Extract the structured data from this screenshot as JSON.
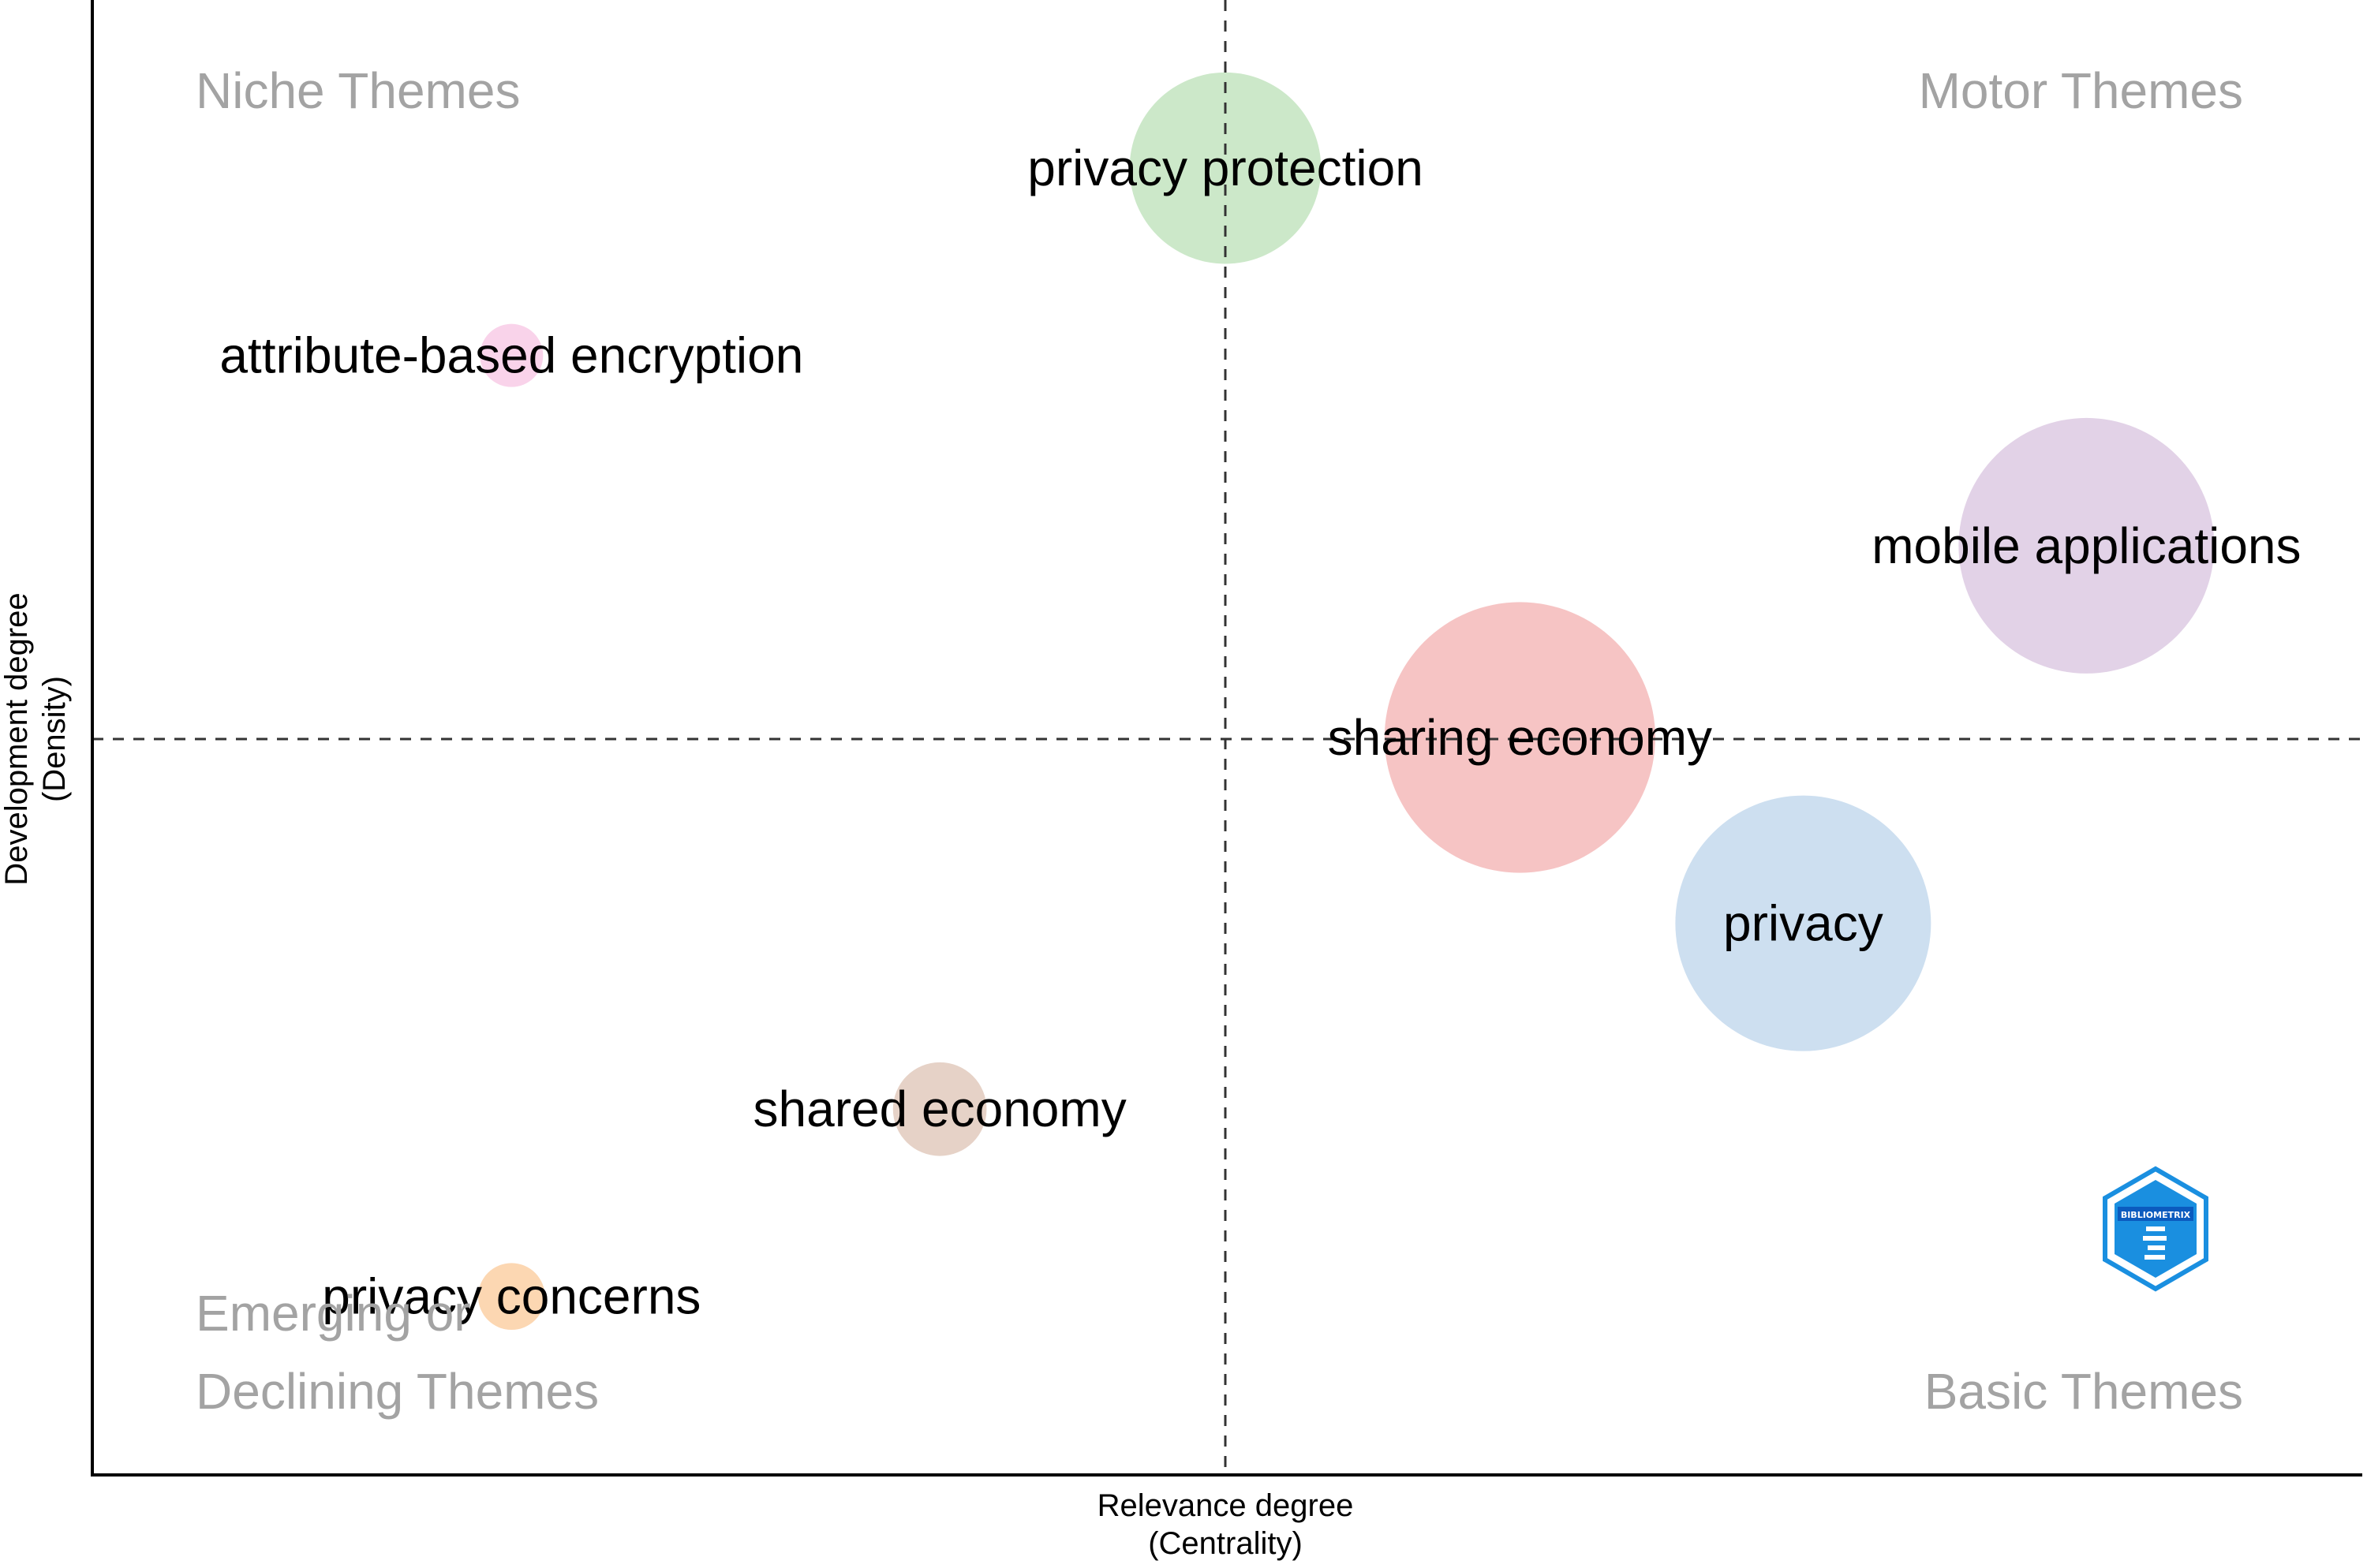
{
  "quadrant_labels": {
    "top_left": "Niche Themes",
    "top_right": "Motor Themes",
    "bottom_left_line1": "Emerging or",
    "bottom_left_line2": "Declining Themes",
    "bottom_right": "Basic Themes"
  },
  "axes": {
    "x_title_line1": "Relevance degree",
    "x_title_line2": "(Centrality)",
    "y_title_line1": "Development degree",
    "y_title_line2": "(Density)"
  },
  "logo": {
    "text": "BIBLIOMETRIX",
    "colors": [
      "#1a8fe0",
      "#0b5bbf"
    ]
  },
  "chart_data": {
    "type": "scatter",
    "subtype": "bubble",
    "xlabel": "Relevance degree (Centrality)",
    "ylabel": "Development degree (Density)",
    "xlim": [
      0,
      100
    ],
    "ylim": [
      0,
      100
    ],
    "x_divider": 50,
    "y_divider": 50,
    "grid": false,
    "ticks": false,
    "points": [
      {
        "label": "privacy protection",
        "x": 50.0,
        "y": 88.6,
        "size": 2.3,
        "color": "#cce8c9"
      },
      {
        "label": "attribute-based encryption",
        "x": 18.5,
        "y": 75.9,
        "size": 0.25,
        "color": "#f9d3ea"
      },
      {
        "label": "mobile applications",
        "x": 88.0,
        "y": 63.0,
        "size": 4.1,
        "color": "#e2d2e7"
      },
      {
        "label": "sharing economy",
        "x": 63.0,
        "y": 50.0,
        "size": 4.6,
        "color": "#f6c4c4"
      },
      {
        "label": "privacy",
        "x": 75.5,
        "y": 37.4,
        "size": 4.1,
        "color": "#cddff0"
      },
      {
        "label": "shared economy",
        "x": 37.4,
        "y": 24.8,
        "size": 0.55,
        "color": "#e6d2c7"
      },
      {
        "label": "privacy concerns",
        "x": 18.5,
        "y": 12.1,
        "size": 0.28,
        "color": "#fcd7b2"
      }
    ]
  }
}
